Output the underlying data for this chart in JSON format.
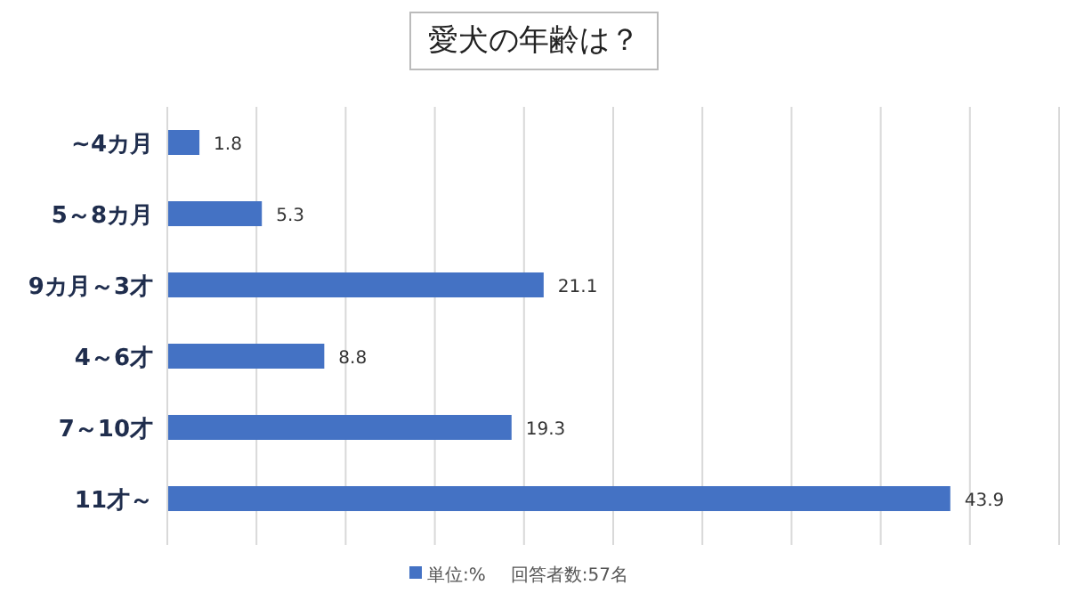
{
  "chart_data": {
    "type": "bar",
    "orientation": "horizontal",
    "title": "愛犬の年齢は？",
    "categories": [
      "~4カ月",
      "5～8カ月",
      "9カ月～3才",
      "4～6才",
      "7～10才",
      "11才～"
    ],
    "series": [
      {
        "name": "単位:%",
        "color": "#4472c4",
        "values": [
          1.8,
          5.3,
          21.1,
          8.8,
          19.3,
          43.9
        ]
      }
    ],
    "xlim": [
      0,
      50
    ],
    "xticks": [
      {
        "value": 0,
        "label": null
      },
      {
        "value": 5,
        "label": null
      },
      {
        "value": 10,
        "label": null
      },
      {
        "value": 15,
        "label": null
      },
      {
        "value": 20,
        "label": null
      },
      {
        "value": 25,
        "label": null
      },
      {
        "value": 30,
        "label": null
      },
      {
        "value": 35,
        "label": null
      },
      {
        "value": 40,
        "label": null
      },
      {
        "value": 45,
        "label": null
      },
      {
        "value": 50,
        "label": null
      }
    ],
    "grid": "x",
    "legend": "bottom",
    "tick_labels": "y",
    "data_labels": true,
    "annotations": [
      "回答者数:57名"
    ]
  }
}
